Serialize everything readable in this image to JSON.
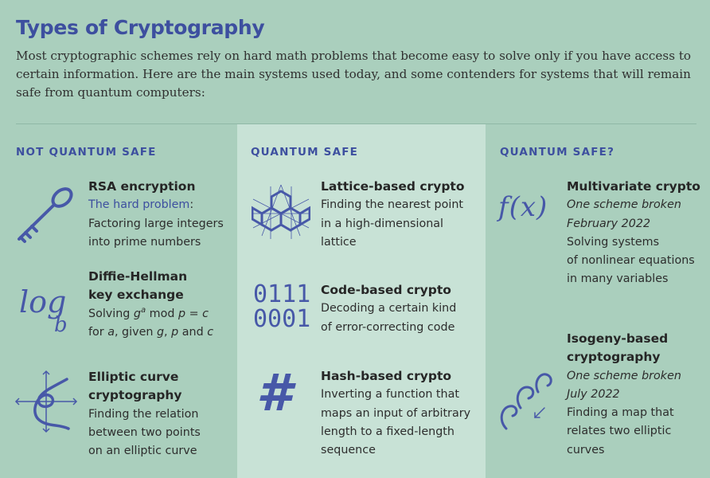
{
  "title": "Types of Cryptography",
  "intro": "Most cryptographic schemes rely on hard math problems that become easy to solve only if you have access to certain information. Here are the main systems used today, and some contenders for systems that will remain safe from quantum computers:",
  "columns": [
    {
      "heading": "NOT QUANTUM SAFE",
      "items": [
        {
          "name": "RSA encryption",
          "hard_label": "The hard problem",
          "hard_colon": ":",
          "lines": [
            "Factoring large integers",
            "into prime numbers"
          ]
        },
        {
          "name_lines": [
            "Diffie-Hellman",
            "key exchange"
          ],
          "line1_a": "Solving ",
          "line1_g": "g",
          "line1_sup": "a",
          "line1_b": " mod ",
          "line1_p": "p",
          "line1_c": " = ",
          "line1_cc": "c",
          "line2_for": "for ",
          "line2_a": "a",
          "line2_given": ", given ",
          "line2_g": "g",
          "line2_comma": ", ",
          "line2_p": "p",
          "line2_and": " and ",
          "line2_c": "c",
          "icon_text_main": "log",
          "icon_text_sub": "b"
        },
        {
          "name_lines": [
            "Elliptic curve",
            "cryptography"
          ],
          "lines": [
            "Finding the relation",
            "between two points",
            "on an elliptic curve"
          ]
        }
      ]
    },
    {
      "heading": "QUANTUM SAFE",
      "items": [
        {
          "name": "Lattice-based crypto",
          "lines": [
            "Finding the nearest point",
            "in a high-dimensional",
            "lattice"
          ]
        },
        {
          "name": "Code-based crypto",
          "lines": [
            "Decoding a certain kind",
            "of error-correcting code"
          ],
          "icon_lines": [
            "0111",
            "0001"
          ]
        },
        {
          "name": "Hash-based crypto",
          "lines": [
            "Inverting a function that",
            "maps an input of arbitrary",
            "length to a fixed-length",
            "sequence"
          ],
          "icon_text": "#"
        }
      ]
    },
    {
      "heading": "QUANTUM SAFE?",
      "items": [
        {
          "name": "Multivariate crypto",
          "note_lines": [
            "One scheme broken",
            "February 2022"
          ],
          "lines": [
            "Solving systems",
            "of nonlinear equations",
            "in many variables"
          ],
          "icon_text": "f(x)"
        },
        {
          "name_lines": [
            "Isogeny-based",
            "cryptography"
          ],
          "note_lines": [
            "One scheme broken",
            "July 2022"
          ],
          "lines": [
            "Finding a map that",
            "relates two elliptic",
            "curves"
          ]
        }
      ]
    }
  ],
  "colors": {
    "background": "#aacfbd",
    "middle_column": "#c8e2d6",
    "accent": "#3d4f9f",
    "icon": "#4758a8"
  }
}
